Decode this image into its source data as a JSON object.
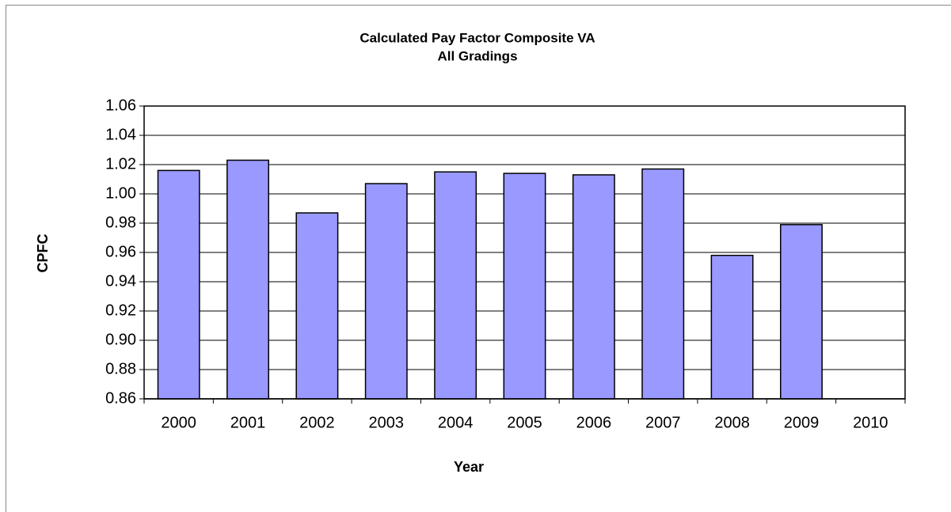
{
  "chart_data": {
    "type": "bar",
    "title": [
      "Calculated Pay Factor Composite VA",
      "All Gradings"
    ],
    "x_label": "Year",
    "y_label": "CPFC",
    "categories": [
      "2000",
      "2001",
      "2002",
      "2003",
      "2004",
      "2005",
      "2006",
      "2007",
      "2008",
      "2009",
      "2010"
    ],
    "values": [
      1.016,
      1.023,
      0.987,
      1.007,
      1.015,
      1.014,
      1.013,
      1.017,
      0.958,
      0.979,
      0.86
    ],
    "color": "#9999ff",
    "ylim": [
      0.86,
      1.06
    ],
    "yticks": [
      0.86,
      0.88,
      {
        "value": 0.9,
        "label": "0.90"
      },
      0.92,
      0.94,
      0.96,
      0.98,
      {
        "value": 1,
        "label": "1.00"
      },
      1.02,
      1.04,
      1.06
    ],
    "grid": true
  }
}
